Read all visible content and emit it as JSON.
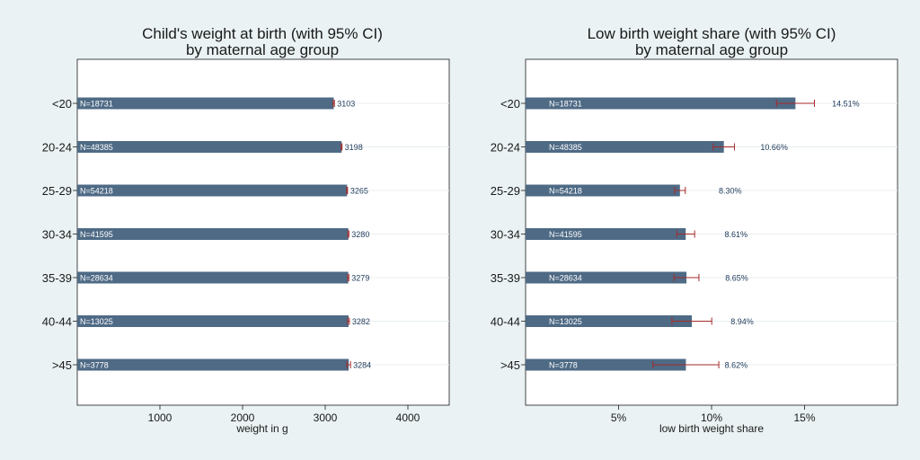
{
  "chart_data": [
    {
      "type": "bar",
      "orientation": "horizontal",
      "title": "Child's weight at birth  (with 95% CI)",
      "subtitle": "by maternal age group",
      "xlabel": "weight in g",
      "ylabel": "",
      "xlim": [
        0,
        4500
      ],
      "xticks": [
        1000,
        2000,
        3000,
        4000
      ],
      "xtick_labels": [
        "1000",
        "2000",
        "3000",
        "4000"
      ],
      "grid": true,
      "categories": [
        "<20",
        "20-24",
        "25-29",
        "30-34",
        "35-39",
        "40-44",
        ">45"
      ],
      "n_labels": [
        "N=18731",
        "N=48385",
        "N=54218",
        "N=41595",
        "N=28634",
        "N=13025",
        "N=3778"
      ],
      "values": [
        3103,
        3198,
        3265,
        3280,
        3279,
        3282,
        3284
      ],
      "value_labels": [
        "3103",
        "3198",
        "3265",
        "3280",
        "3279",
        "3282",
        "3284"
      ],
      "ci_low": [
        3095,
        3193,
        3260,
        3274,
        3272,
        3272,
        3262
      ],
      "ci_high": [
        3111,
        3203,
        3270,
        3286,
        3286,
        3292,
        3306
      ]
    },
    {
      "type": "bar",
      "orientation": "horizontal",
      "title": "Low birth weight share (with 95% CI)",
      "subtitle": "by maternal age group",
      "xlabel": "low birth weight share",
      "ylabel": "",
      "xlim": [
        0,
        0.2
      ],
      "xticks": [
        0.05,
        0.1,
        0.15
      ],
      "xtick_labels": [
        "5%",
        "10%",
        "15%"
      ],
      "grid": true,
      "categories": [
        "<20",
        "20-24",
        "25-29",
        "30-34",
        "35-39",
        "40-44",
        ">45"
      ],
      "n_labels": [
        "N=18731",
        "N=48385",
        "N=54218",
        "N=41595",
        "N=28634",
        "N=13025",
        "N=3778"
      ],
      "values": [
        0.1451,
        0.1066,
        0.083,
        0.0861,
        0.0865,
        0.0894,
        0.0862
      ],
      "value_labels": [
        "14.51%",
        "10.66%",
        "8.30%",
        "8.61%",
        "8.65%",
        "8.94%",
        "8.62%"
      ],
      "ci_low": [
        0.1349,
        0.1009,
        0.0801,
        0.0813,
        0.0798,
        0.0787,
        0.0685
      ],
      "ci_high": [
        0.1553,
        0.1123,
        0.0859,
        0.0909,
        0.0932,
        0.1001,
        0.1039
      ]
    }
  ],
  "colors": {
    "background": "#eaf2f3",
    "plot_background": "#ffffff",
    "bar": "#4e6a85",
    "ci": "#a52a2a",
    "grid": "#e8eef0",
    "text": "#1a1a1a",
    "value_label": "#1e3a5a",
    "n_label": "#ffffff"
  }
}
